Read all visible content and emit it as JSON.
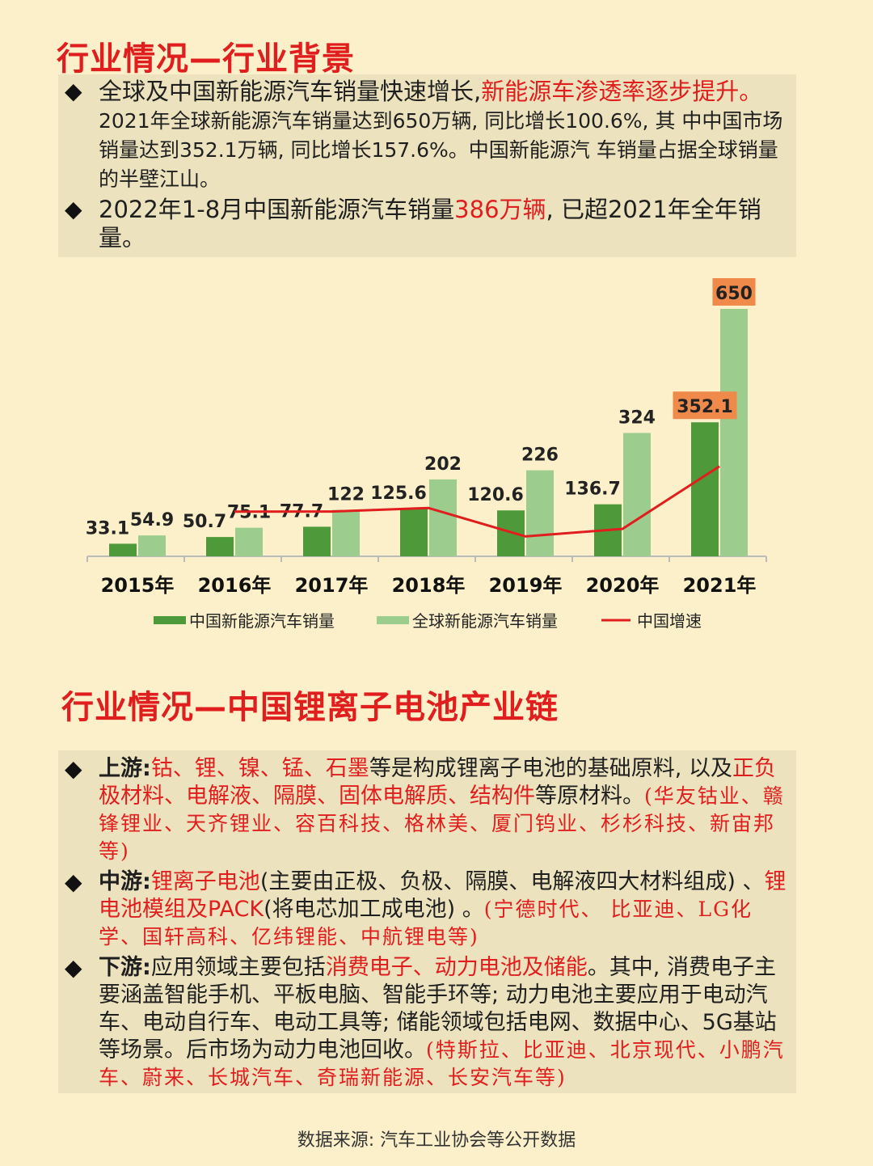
{
  "section1": {
    "title": "行业情况—行业背景",
    "bullet1": {
      "a": "全球及中国新能源汽车销量快速增长,",
      "b": "新能源车渗透率逐步提升。",
      "c": "2021年全球新能源汽车销量达到650万辆, 同比增长100.6%, 其 中中国市场销量达到352.1万辆, 同比增长157.6%。中国新能源汽 车销量占据全球销量的半壁江山。"
    },
    "bullet2": {
      "a": "2022年1-8月中国新能源汽车销量",
      "b": "386万辆",
      "c": ", 已超2021年全年销量。"
    }
  },
  "chart_data": {
    "type": "bar",
    "categories": [
      "2015年",
      "2016年",
      "2017年",
      "2018年",
      "2019年",
      "2020年",
      "2021年"
    ],
    "series": [
      {
        "name": "中国新能源汽车销量",
        "values": [
          33.1,
          50.7,
          77.7,
          125.6,
          120.6,
          136.7,
          352.1
        ],
        "color": "#4e9a3a"
      },
      {
        "name": "全球新能源汽车销量",
        "values": [
          54.9,
          75.1,
          122,
          202,
          226,
          324,
          650
        ],
        "color": "#9ccc8e"
      }
    ],
    "line": {
      "name": "中国增速",
      "color": "#e01e1e",
      "values": [
        null,
        53.2,
        53.3,
        61.6,
        -4.0,
        13.3,
        157.6
      ]
    },
    "ylim": [
      0,
      700
    ],
    "highlight_labels": [
      "352.1",
      "650"
    ],
    "highlight_color": "#f08a4b",
    "legend_position": "bottom"
  },
  "section2": {
    "title": "行业情况—中国锂离子电池产业链",
    "upstream": {
      "label": "上游:",
      "a": "钴、锂、镍、锰、石墨",
      "b": "等是构成锂离子电池的基础原料, 以及",
      "c": "正负极材料、电解液、隔膜、固体电解质、结构件",
      "d": "等原材料。",
      "e": "(华友钴业、赣锋锂业、天齐锂业、容百科技、格林美、厦门钨业、杉杉科技、新宙邦等)"
    },
    "midstream": {
      "label": "中游:",
      "a": "锂离子电池",
      "b": "(主要由正极、负极、隔膜、电解液四大材料组成) 、",
      "c": "锂电池模组及PACK",
      "d": "(将电芯加工成电池) 。",
      "e": "(宁德时代、 比亚迪、LG化学、国轩高科、亿纬锂能、中航锂电等)"
    },
    "downstream": {
      "label": "下游:",
      "a": "应用领域主要包括",
      "b": "消费电子、动力电池及储能",
      "c": "。其中, 消费电子主要涵盖智能手机、平板电脑、智能手环等; 动力电池主要应用于电动汽车、电动自行车、电动工具等; 储能领域包括电网、数据中心、5G基站等场景。后市场为动力电池回收。",
      "e": "(特斯拉、比亚迪、北京现代、小鹏汽车、蔚来、长城汽车、奇瑞新能源、长安汽车等)"
    }
  },
  "source": "数据来源: 汽车工业协会等公开数据"
}
